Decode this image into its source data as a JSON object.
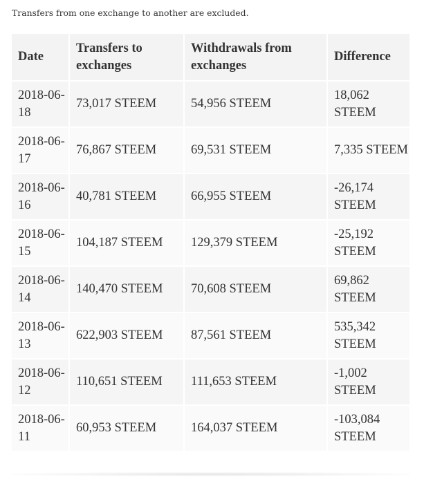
{
  "note": "Transfers from one exchange to another are excluded.",
  "table": {
    "headers": {
      "date": "Date",
      "transfers_to": "Transfers to exchanges",
      "withdrawals_from": "Withdrawals from exchanges",
      "difference": "Difference"
    },
    "rows": [
      {
        "date": "2018-06-18",
        "transfers_to": "73,017 STEEM",
        "withdrawals_from": "54,956 STEEM",
        "difference": "18,062 STEEM"
      },
      {
        "date": "2018-06-17",
        "transfers_to": "76,867 STEEM",
        "withdrawals_from": "69,531 STEEM",
        "difference": "7,335 STEEM"
      },
      {
        "date": "2018-06-16",
        "transfers_to": "40,781 STEEM",
        "withdrawals_from": "66,955 STEEM",
        "difference": "-26,174 STEEM"
      },
      {
        "date": "2018-06-15",
        "transfers_to": "104,187 STEEM",
        "withdrawals_from": "129,379 STEEM",
        "difference": "-25,192 STEEM"
      },
      {
        "date": "2018-06-14",
        "transfers_to": "140,470 STEEM",
        "withdrawals_from": "70,608 STEEM",
        "difference": "69,862 STEEM"
      },
      {
        "date": "2018-06-13",
        "transfers_to": "622,903 STEEM",
        "withdrawals_from": "87,561 STEEM",
        "difference": "535,342 STEEM"
      },
      {
        "date": "2018-06-12",
        "transfers_to": "110,651 STEEM",
        "withdrawals_from": "111,653 STEEM",
        "difference": "-1,002 STEEM"
      },
      {
        "date": "2018-06-11",
        "transfers_to": "60,953 STEEM",
        "withdrawals_from": "164,037 STEEM",
        "difference": "-103,084 STEEM"
      }
    ]
  }
}
